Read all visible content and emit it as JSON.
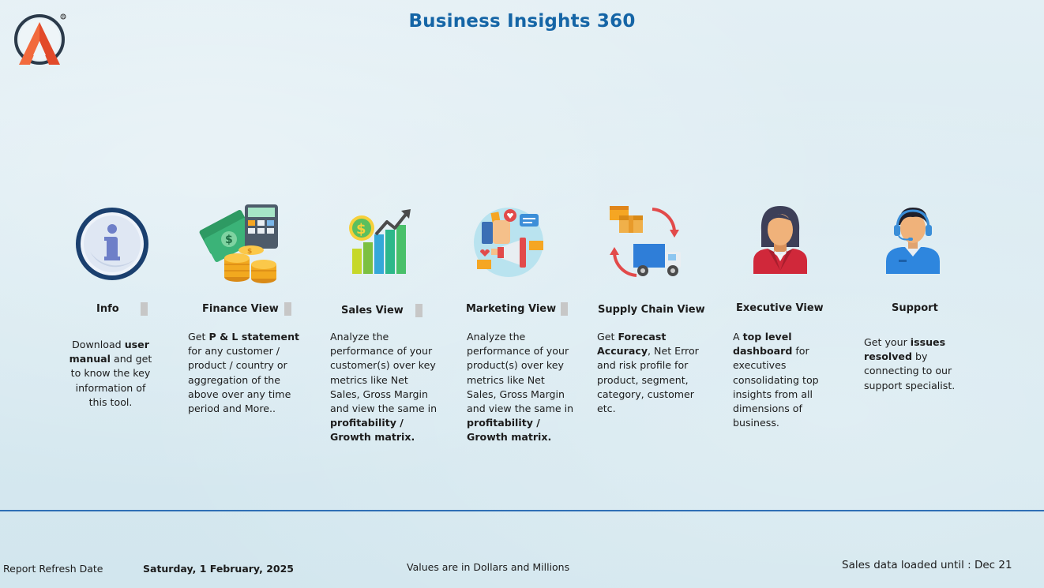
{
  "header": {
    "title": "Business Insights 360",
    "logo_icon": "atliq-logo-icon"
  },
  "cards": [
    {
      "id": "info",
      "heading": "Info",
      "icon": "info-icon",
      "desc_parts": [
        {
          "t": "Download ",
          "b": false
        },
        {
          "t": "user manual",
          "b": true
        },
        {
          "t": " and get to know the key information of this tool.",
          "b": false
        }
      ]
    },
    {
      "id": "finance",
      "heading": "Finance View",
      "icon": "money-calculator-icon",
      "desc_parts": [
        {
          "t": "Get  ",
          "b": false
        },
        {
          "t": "P & L statement",
          "b": true
        },
        {
          "t": " for any customer / product / country or aggregation of the above over any time period and More..",
          "b": false
        }
      ]
    },
    {
      "id": "sales",
      "heading": "Sales View",
      "icon": "sales-growth-icon",
      "desc_parts": [
        {
          "t": "Analyze the performance of your customer(s) over key metrics like Net Sales, Gross Margin and view the same in ",
          "b": false
        },
        {
          "t": "profitability / Growth matrix.",
          "b": true
        }
      ]
    },
    {
      "id": "marketing",
      "heading": "Marketing View",
      "icon": "marketing-icon",
      "desc_parts": [
        {
          "t": "Analyze the performance of your product(s) over key metrics like Net Sales, Gross Margin and view the same in ",
          "b": false
        },
        {
          "t": "profitability / Growth matrix.",
          "b": true
        }
      ]
    },
    {
      "id": "supply",
      "heading": "Supply Chain View",
      "icon": "delivery-truck-icon",
      "desc_parts": [
        {
          "t": "Get ",
          "b": false
        },
        {
          "t": "Forecast Accuracy",
          "b": true
        },
        {
          "t": ", Net Error and risk profile for product, segment, category, customer etc.",
          "b": false
        }
      ]
    },
    {
      "id": "executive",
      "heading": "Executive View",
      "icon": "executive-woman-icon",
      "desc_parts": [
        {
          "t": "A ",
          "b": false
        },
        {
          "t": "top level dashboard",
          "b": true
        },
        {
          "t": " for executives consolidating top insights from all dimensions of business.",
          "b": false
        }
      ]
    },
    {
      "id": "support",
      "heading": "Support",
      "icon": "support-agent-icon",
      "desc_parts": [
        {
          "t": "Get your ",
          "b": false
        },
        {
          "t": "issues resolved",
          "b": true
        },
        {
          "t": " by connecting to our support specialist.",
          "b": false
        }
      ]
    }
  ],
  "footer": {
    "refresh_label": "Report Refresh Date",
    "refresh_date": "Saturday, 1 February, 2025",
    "units_note": "Values are in Dollars and Millions",
    "sales_loaded": "Sales data loaded until : Dec 21"
  },
  "colors": {
    "title": "#1565a6",
    "divider": "#2f6fb5",
    "logo_orange": "#f26a3d",
    "logo_dark": "#2b3a4a"
  }
}
